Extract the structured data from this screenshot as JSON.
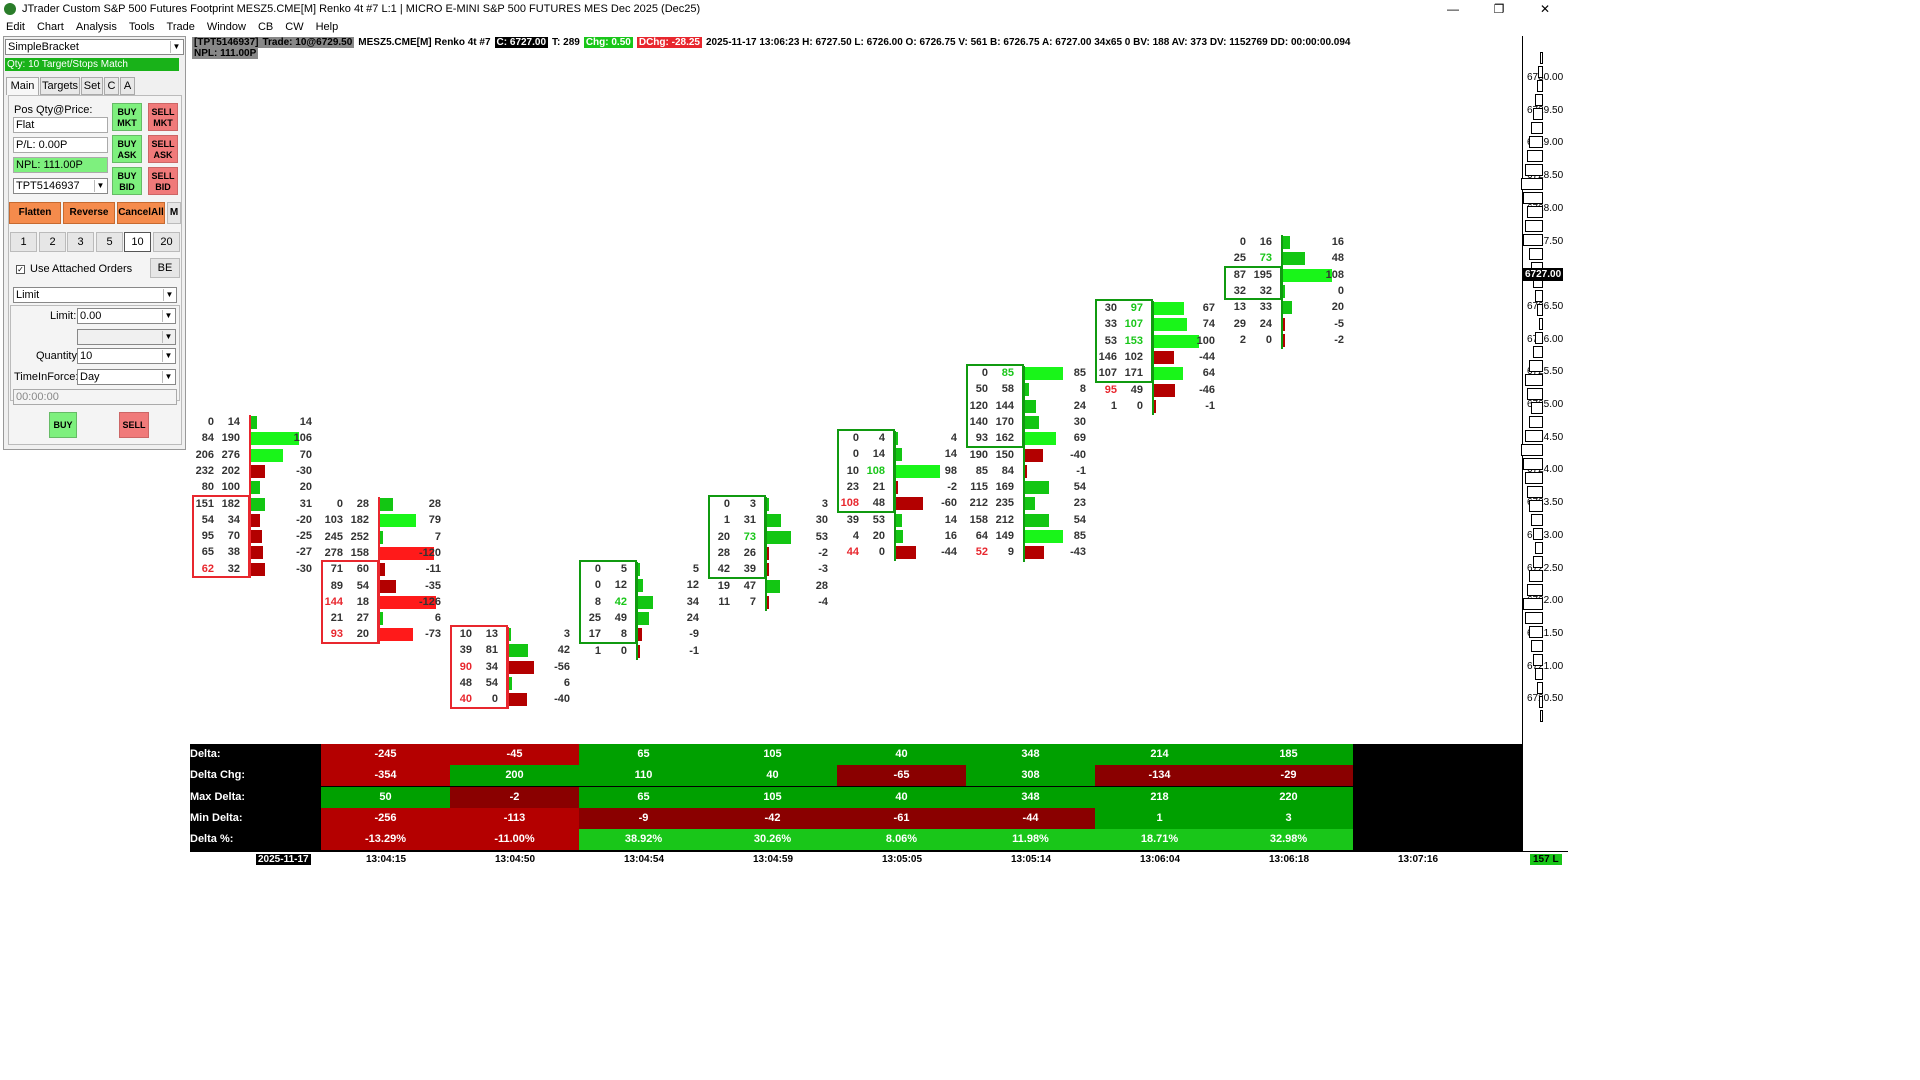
{
  "window": {
    "title": "JTrader Custom S&P 500 Futures Footprint MESZ5.CME[M]  Renko 4t #7 L:1 | MICRO E-MINI S&P 500 FUTURES MES Dec 2025 (Dec25)",
    "min": "—",
    "max": "❐",
    "close": "✕"
  },
  "menu": [
    "Edit",
    "Chart",
    "Analysis",
    "Tools",
    "Trade",
    "Window",
    "CB",
    "CW",
    "Help"
  ],
  "panel": {
    "strategy": "SimpleBracket",
    "qty_status": "Qty: 10 Target/Stops Match",
    "tabs": [
      "Main",
      "Targets",
      "Set",
      "C",
      "A"
    ],
    "pos_label": "Pos Qty@Price:",
    "pos_value": "Flat",
    "pl": "P/L: 0.00P",
    "npl": "NPL: 111.00P",
    "account": "TPT5146937",
    "buy_mkt": "BUY MKT",
    "sell_mkt": "SELL MKT",
    "buy_ask": "BUY ASK",
    "sell_ask": "SELL ASK",
    "buy_bid": "BUY BID",
    "sell_bid": "SELL BID",
    "flatten": "Flatten",
    "reverse": "Reverse",
    "cancel_all": "CancelAll",
    "m": "M",
    "qty_buttons": [
      "1",
      "2",
      "3",
      "5",
      "10",
      "20"
    ],
    "use_attached": "Use Attached Orders",
    "be": "BE",
    "order_type": "Limit",
    "limit_label": "Limit:",
    "limit_value": "0.00",
    "quantity_label": "Quantity:",
    "quantity_value": "10",
    "tif_label": "TimeInForce:",
    "tif_value": "Day",
    "time_value": "00:00:00",
    "buy": "BUY",
    "sell": "SELL"
  },
  "info": {
    "acct": "[TPT5146937]",
    "trade": "Trade: 10@6729.50",
    "sym": "MESZ5.CME[M]  Renko 4t #7",
    "c": "C: 6727.00",
    "t": "T: 289",
    "chg": "Chg: 0.50",
    "dchg": "DChg: -28.25",
    "rest": "2025-11-17  13:06:23  H: 6727.50  L: 6726.00  O: 6726.75  V: 561  B: 6726.75  A: 6727.00  34x65 0  BV: 188  AV: 373  DV: 1152769  DD: 00:00:00.094",
    "npl": "NPL: 111.00P"
  },
  "price_scale": {
    "labels": [
      "6730.00",
      "6729.50",
      "6729.00",
      "6728.50",
      "6728.00",
      "6727.50",
      "6727.00",
      "6726.50",
      "6726.00",
      "6725.50",
      "6725.00",
      "6724.50",
      "6724.00",
      "6723.50",
      "6723.00",
      "6722.50",
      "6722.00",
      "6721.50",
      "6721.00",
      "6720.50"
    ],
    "current": "6727.00"
  },
  "table": {
    "labels": [
      "Delta:",
      "Delta Chg:",
      "Max Delta:",
      "Min Delta:",
      "Delta %:"
    ],
    "rows": [
      [
        "-245",
        "-45",
        "65",
        "105",
        "40",
        "348",
        "214",
        "185"
      ],
      [
        "-354",
        "200",
        "110",
        "40",
        "-65",
        "308",
        "-134",
        "-29"
      ],
      [
        "50",
        "-2",
        "65",
        "105",
        "40",
        "348",
        "218",
        "220"
      ],
      [
        "-256",
        "-113",
        "-9",
        "-42",
        "-61",
        "-44",
        "1",
        "3"
      ],
      [
        "-13.29%",
        "-11.00%",
        "38.92%",
        "30.26%",
        "8.06%",
        "11.98%",
        "18.71%",
        "32.98%"
      ]
    ]
  },
  "time_axis": {
    "labels": [
      "2025-11-17",
      "13:04:15",
      "13:04:50",
      "13:04:54",
      "13:04:59",
      "13:05:05",
      "13:05:14",
      "13:06:04",
      "13:06:18",
      "13:07:16"
    ],
    "corner": "157 L"
  },
  "bars": [
    {
      "top": 14,
      "rows": [
        [
          "0",
          "14",
          "14"
        ],
        [
          "84",
          "190",
          "106"
        ],
        [
          "206",
          "276",
          "70"
        ],
        [
          "232",
          "202",
          "-30"
        ],
        [
          "80",
          "100",
          "20"
        ],
        [
          "151",
          "182",
          "31"
        ],
        [
          "54",
          "34",
          "-20"
        ],
        [
          "95",
          "70",
          "-25"
        ],
        [
          "65",
          "38",
          "-27"
        ],
        [
          "62",
          "32",
          "-30"
        ]
      ]
    },
    {
      "top": 28,
      "rows": [
        [
          "0",
          "28",
          "28"
        ],
        [
          "103",
          "182",
          "79"
        ],
        [
          "245",
          "252",
          "7"
        ],
        [
          "278",
          "158",
          "-120"
        ],
        [
          "71",
          "60",
          "-11"
        ],
        [
          "89",
          "54",
          "-35"
        ],
        [
          "144",
          "18",
          "-126"
        ],
        [
          "21",
          "27",
          "6"
        ],
        [
          "93",
          "20",
          "-73"
        ]
      ]
    },
    {
      "top": 0,
      "rows": [
        [
          "10",
          "13",
          "3"
        ],
        [
          "39",
          "81",
          "42"
        ],
        [
          "90",
          "34",
          "-56"
        ],
        [
          "48",
          "54",
          "6"
        ],
        [
          "40",
          "0",
          "-40"
        ]
      ]
    },
    {
      "top": 0,
      "rows": [
        [
          "0",
          "5",
          "5"
        ],
        [
          "0",
          "12",
          "12"
        ],
        [
          "8",
          "42",
          "34"
        ],
        [
          "25",
          "49",
          "24"
        ],
        [
          "17",
          "8",
          "-9"
        ],
        [
          "1",
          "0",
          "-1"
        ]
      ]
    },
    {
      "top": 0,
      "rows": [
        [
          "0",
          "3",
          "3"
        ],
        [
          "1",
          "31",
          "30"
        ],
        [
          "20",
          "73",
          "53"
        ],
        [
          "28",
          "26",
          "-2"
        ],
        [
          "42",
          "39",
          "-3"
        ],
        [
          "19",
          "47",
          "28"
        ],
        [
          "11",
          "7",
          "-4"
        ]
      ]
    },
    {
      "top": 0,
      "rows": [
        [
          "0",
          "4",
          "4"
        ],
        [
          "0",
          "14",
          "14"
        ],
        [
          "10",
          "108",
          "98"
        ],
        [
          "23",
          "21",
          "-2"
        ],
        [
          "108",
          "48",
          "-60"
        ],
        [
          "39",
          "53",
          "14"
        ],
        [
          "4",
          "20",
          "16"
        ],
        [
          "44",
          "0",
          "-44"
        ]
      ]
    },
    {
      "top": 0,
      "rows": [
        [
          "0",
          "85",
          "85"
        ],
        [
          "50",
          "58",
          "8"
        ],
        [
          "120",
          "144",
          "24"
        ],
        [
          "140",
          "170",
          "30"
        ],
        [
          "93",
          "162",
          "69"
        ],
        [
          "190",
          "150",
          "-40"
        ],
        [
          "85",
          "84",
          "-1"
        ],
        [
          "115",
          "169",
          "54"
        ],
        [
          "212",
          "235",
          "23"
        ],
        [
          "158",
          "212",
          "54"
        ],
        [
          "64",
          "149",
          "85"
        ],
        [
          "52",
          "9",
          "-43"
        ]
      ]
    },
    {
      "top": 0,
      "rows": [
        [
          "30",
          "97",
          "67"
        ],
        [
          "33",
          "107",
          "74"
        ],
        [
          "53",
          "153",
          "100"
        ],
        [
          "146",
          "102",
          "-44"
        ],
        [
          "107",
          "171",
          "64"
        ],
        [
          "95",
          "49",
          "-46"
        ],
        [
          "1",
          "0",
          "-1"
        ]
      ]
    },
    {
      "top": 0,
      "rows": [
        [
          "0",
          "16",
          "16"
        ],
        [
          "25",
          "73",
          "48"
        ],
        [
          "87",
          "195",
          "108"
        ],
        [
          "32",
          "32",
          "0"
        ],
        [
          "13",
          "33",
          "20"
        ],
        [
          "29",
          "24",
          "-5"
        ],
        [
          "2",
          "0",
          "-2"
        ]
      ]
    }
  ]
}
